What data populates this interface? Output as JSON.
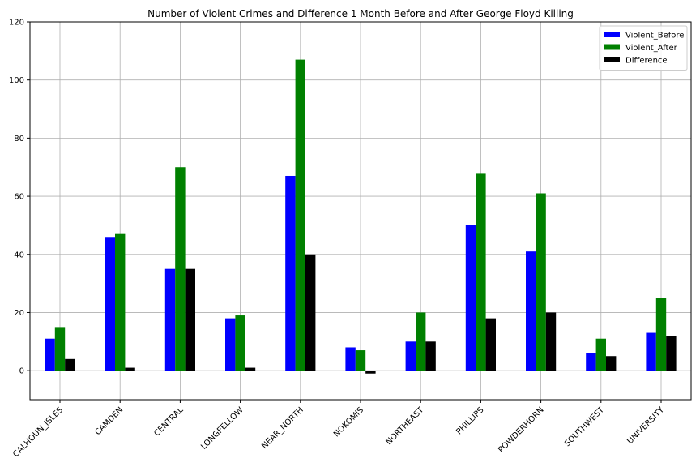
{
  "chart_data": {
    "type": "bar",
    "title": "Number of Violent Crimes and Difference 1 Month Before and After George Floyd Killing",
    "xlabel": "",
    "ylabel": "",
    "ylim": [
      -10,
      120
    ],
    "yticks": [
      0,
      20,
      40,
      60,
      80,
      100,
      120
    ],
    "grid": true,
    "legend_position": "top-right",
    "categories": [
      "CALHOUN_ISLES",
      "CAMDEN",
      "CENTRAL",
      "LONGFELLOW",
      "NEAR_NORTH",
      "NOKOMIS",
      "NORTHEAST",
      "PHILLIPS",
      "POWDERHORN",
      "SOUTHWEST",
      "UNIVERSITY"
    ],
    "series": [
      {
        "name": "Violent_Before",
        "color": "#0000ff",
        "values": [
          11,
          46,
          35,
          18,
          67,
          8,
          10,
          50,
          41,
          6,
          13
        ]
      },
      {
        "name": "Violent_After",
        "color": "#008000",
        "values": [
          15,
          47,
          70,
          19,
          107,
          7,
          20,
          68,
          61,
          11,
          25
        ]
      },
      {
        "name": "Difference",
        "color": "#000000",
        "values": [
          4,
          1,
          35,
          1,
          40,
          -1,
          10,
          18,
          20,
          5,
          12
        ]
      }
    ]
  }
}
